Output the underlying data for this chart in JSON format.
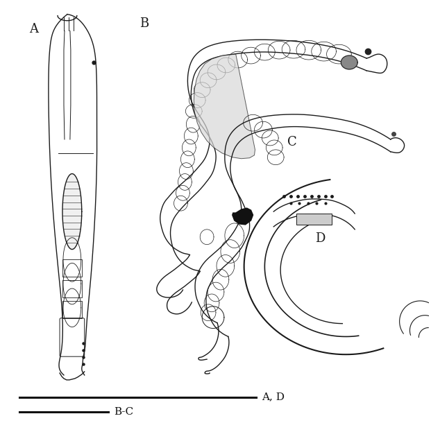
{
  "fig_width": 6.21,
  "fig_height": 6.23,
  "dpi": 100,
  "bg_color": "#ffffff",
  "line_color": "#1a1a1a",
  "label_fontsize": 13,
  "scalebar_fontsize": 11,
  "scalebar_lw": 2.2,
  "scalebar_color": "#111111",
  "label_A": "A",
  "label_B": "B",
  "label_C": "C",
  "label_D": "D",
  "scalebar1_label": "A, D",
  "scalebar2_label": "B-C"
}
